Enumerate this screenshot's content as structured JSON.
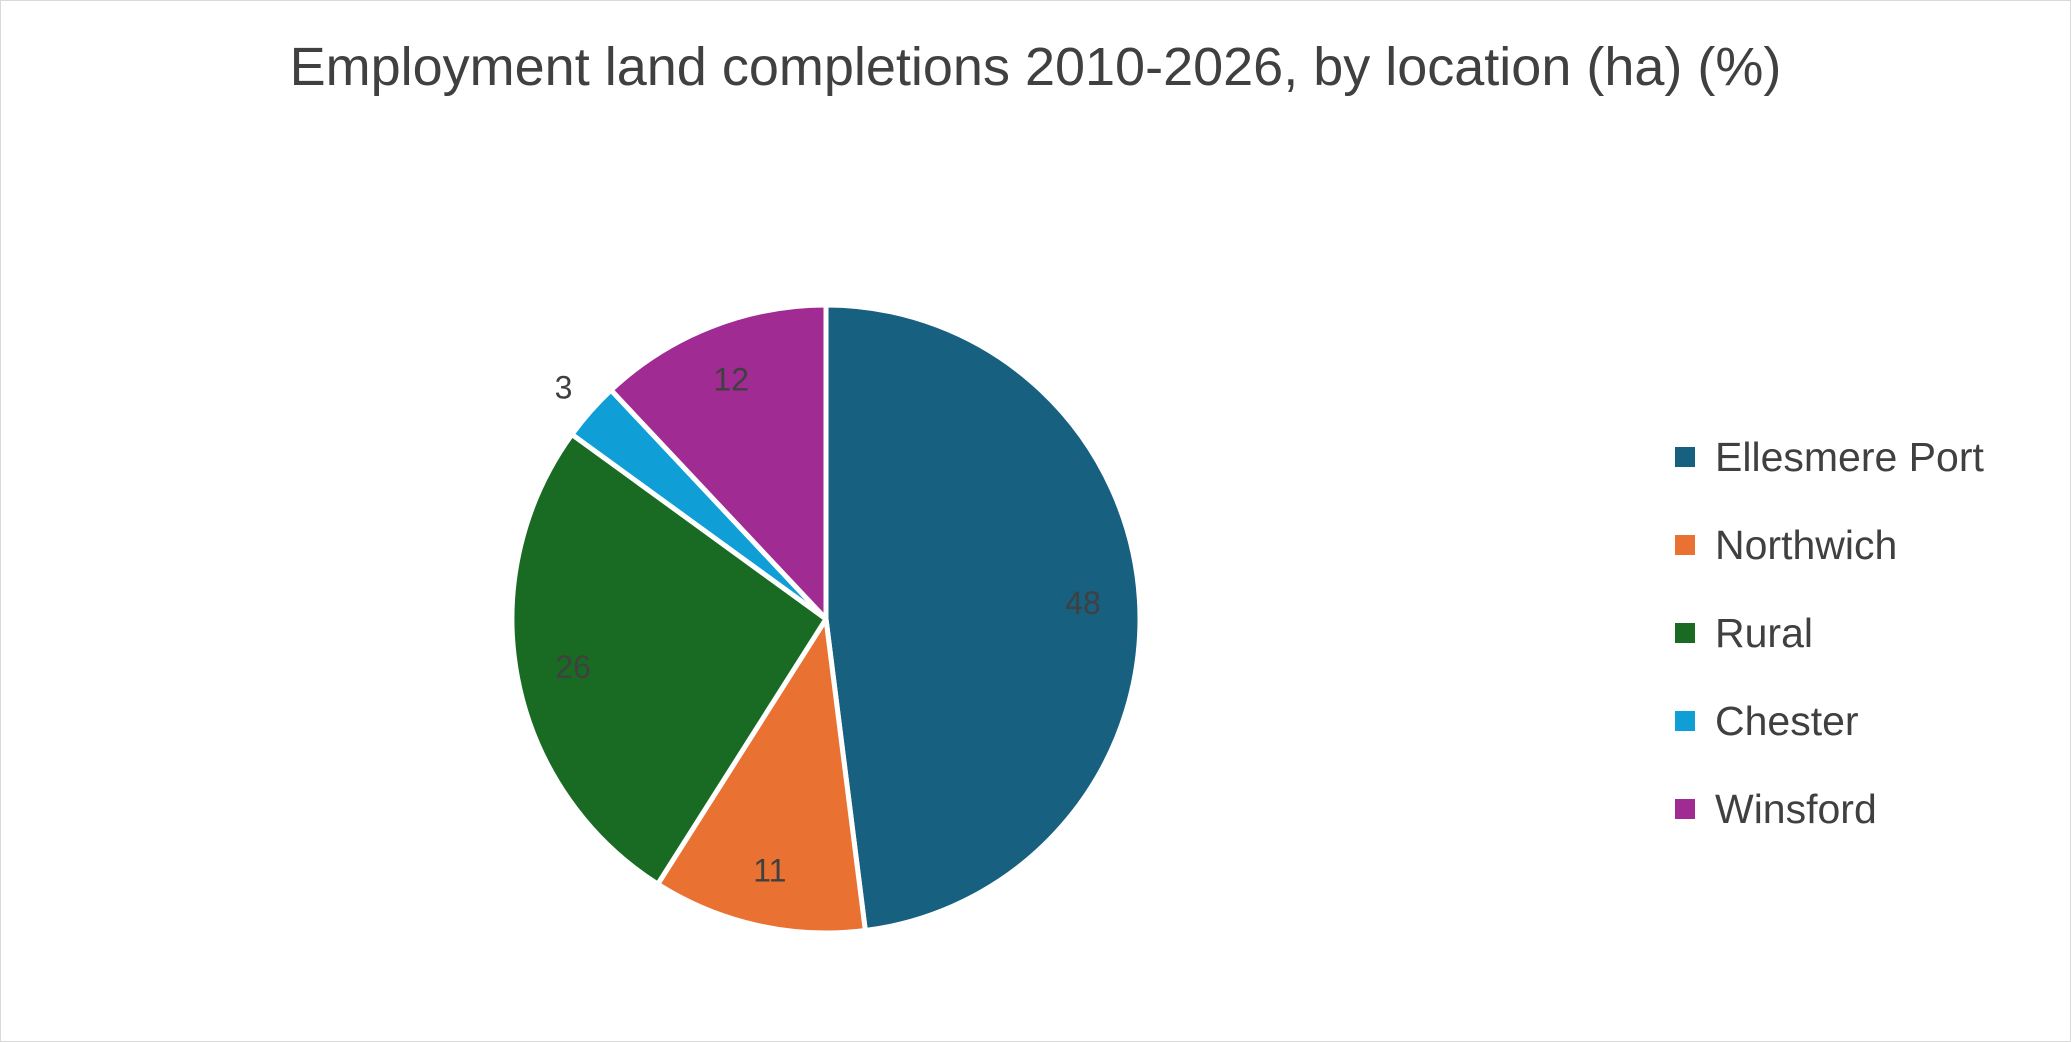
{
  "chart_data": {
    "type": "pie",
    "title": "Employment land completions 2010-2026, by location (ha) (%)",
    "categories": [
      "Ellesmere Port",
      "Northwich",
      "Rural",
      "Chester",
      "Winsford"
    ],
    "values": [
      48,
      11,
      26,
      3,
      12
    ],
    "colors": [
      "#17607f",
      "#e97132",
      "#196b24",
      "#0f9ed5",
      "#a02b93"
    ],
    "data_labels": [
      "48",
      "11",
      "26",
      "3",
      "12"
    ],
    "legend_position": "right",
    "start_angle_deg": 0,
    "direction": "clockwise"
  }
}
